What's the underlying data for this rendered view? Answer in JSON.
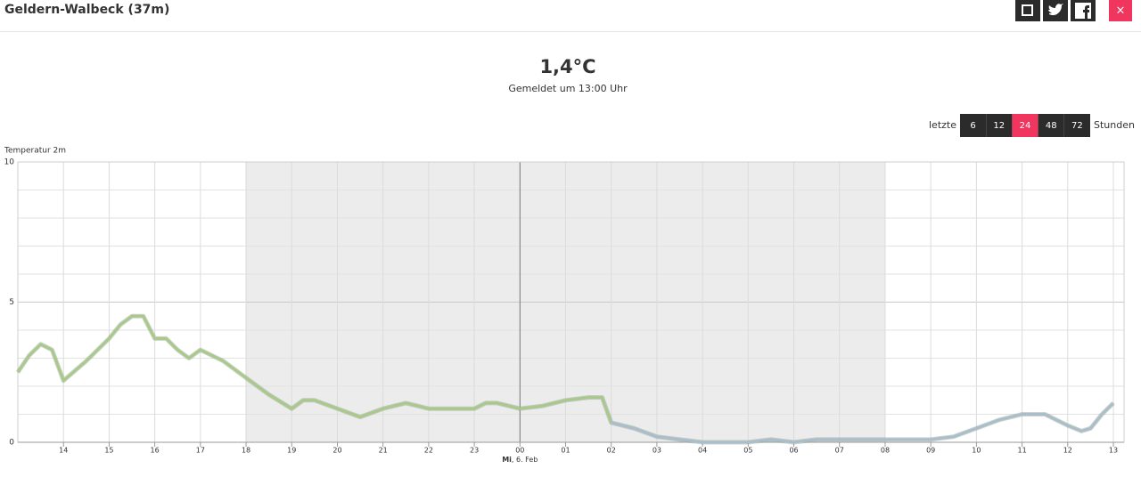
{
  "header": {
    "title": "Geldern-Walbeck (37m)",
    "close": "×"
  },
  "current": {
    "value": "1,4°C",
    "note": "Gemeldet um 13:00 Uhr"
  },
  "range": {
    "prefix": "letzte",
    "options": [
      "6",
      "12",
      "24",
      "48",
      "72"
    ],
    "active": "24",
    "suffix": "Stunden"
  },
  "chart_data": {
    "type": "line",
    "y_label": "Temperatur 2m",
    "x": [
      13,
      13.25,
      13.5,
      13.75,
      14,
      14.5,
      15,
      15.25,
      15.5,
      15.75,
      16,
      16.25,
      16.5,
      16.75,
      17,
      17.5,
      18,
      18.5,
      19,
      19.25,
      19.5,
      20,
      20.5,
      21,
      21.5,
      22,
      22.5,
      23,
      23.25,
      23.5,
      24,
      24.5,
      25,
      25.5,
      25.8,
      26,
      26.5,
      27,
      27.5,
      28,
      29,
      29.5,
      30,
      30.5,
      31,
      32,
      32.5,
      33,
      33.5,
      34,
      34.5,
      35,
      35.5,
      36,
      36.3,
      36.5,
      36.75,
      37
    ],
    "values": [
      2.5,
      3.1,
      3.5,
      3.3,
      2.2,
      2.9,
      3.7,
      4.2,
      4.5,
      4.5,
      3.7,
      3.7,
      3.3,
      3.0,
      3.3,
      2.9,
      2.3,
      1.7,
      1.2,
      1.5,
      1.5,
      1.2,
      0.9,
      1.2,
      1.4,
      1.2,
      1.2,
      1.2,
      1.4,
      1.4,
      1.2,
      1.3,
      1.5,
      1.6,
      1.6,
      0.7,
      0.5,
      0.2,
      0.1,
      0.0,
      0.0,
      0.1,
      0.0,
      0.1,
      0.1,
      0.1,
      0.1,
      0.1,
      0.2,
      0.5,
      0.8,
      1.0,
      1.0,
      0.6,
      0.4,
      0.5,
      1.0,
      1.4
    ],
    "colors": [
      "#a9c98b",
      "#a9bdcc"
    ],
    "color_split_x": 26,
    "xlim": [
      13,
      37
    ],
    "xticks": [
      {
        "value": 14,
        "label": "14"
      },
      {
        "value": 15,
        "label": "15"
      },
      {
        "value": 16,
        "label": "16"
      },
      {
        "value": 17,
        "label": "17"
      },
      {
        "value": 18,
        "label": "18"
      },
      {
        "value": 19,
        "label": "19"
      },
      {
        "value": 20,
        "label": "20"
      },
      {
        "value": 21,
        "label": "21"
      },
      {
        "value": 22,
        "label": "22"
      },
      {
        "value": 23,
        "label": "23"
      },
      {
        "value": 24,
        "label": "00"
      },
      {
        "value": 25,
        "label": "01"
      },
      {
        "value": 26,
        "label": "02"
      },
      {
        "value": 27,
        "label": "03"
      },
      {
        "value": 28,
        "label": "04"
      },
      {
        "value": 29,
        "label": "05"
      },
      {
        "value": 30,
        "label": "06"
      },
      {
        "value": 31,
        "label": "07"
      },
      {
        "value": 32,
        "label": "08"
      },
      {
        "value": 33,
        "label": "09"
      },
      {
        "value": 34,
        "label": "10"
      },
      {
        "value": 35,
        "label": "11"
      },
      {
        "value": 36,
        "label": "12"
      },
      {
        "value": 37,
        "label": "13"
      }
    ],
    "day_boundary": 24,
    "day_label_weekday": "Mi",
    "day_label_date": ", 6. Feb",
    "night": [
      18,
      32
    ],
    "ylim": [
      0,
      10
    ],
    "yticks": [
      0,
      5,
      10
    ],
    "minor_yticks": [
      1,
      2,
      3,
      4,
      6,
      7,
      8,
      9
    ],
    "grid": true
  }
}
